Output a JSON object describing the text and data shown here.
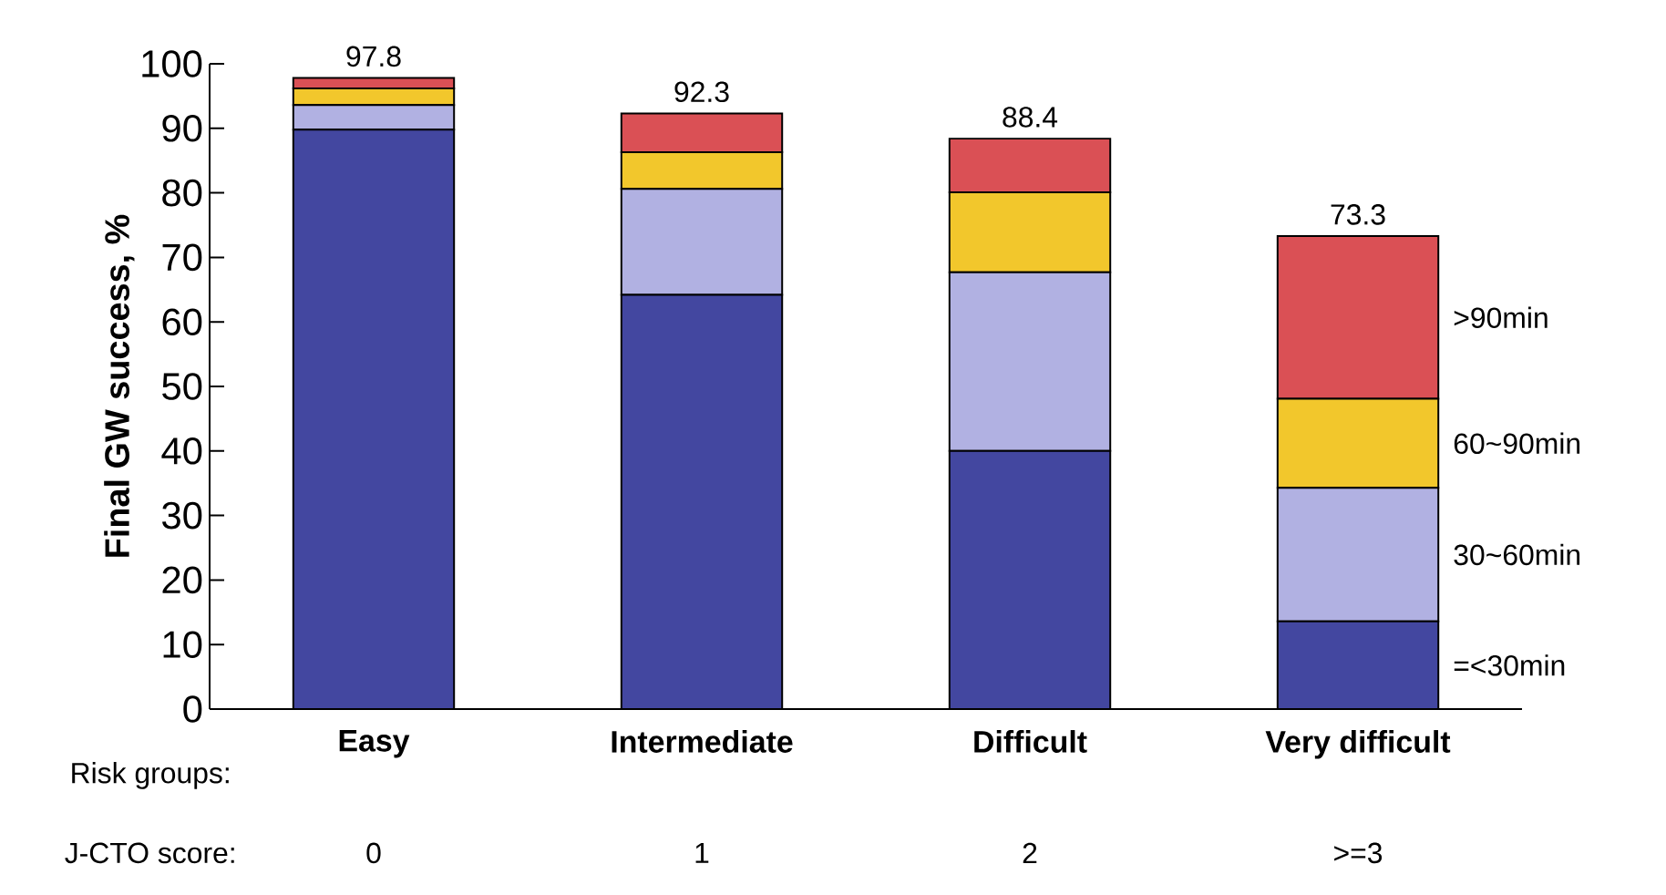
{
  "chart_data": {
    "type": "bar",
    "stacked": true,
    "ylabel": "Final GW success, %",
    "categories": [
      "Easy",
      "Intermediate",
      "Difficult",
      "Very difficult"
    ],
    "series": [
      {
        "name": "=<30min",
        "color": "#4347a0",
        "values": [
          89.8,
          64.2,
          40.0,
          13.6
        ]
      },
      {
        "name": "30~60min",
        "color": "#b1b1e2",
        "values": [
          3.8,
          16.4,
          27.7,
          20.7
        ]
      },
      {
        "name": "60~90min",
        "color": "#f2c72c",
        "values": [
          2.6,
          5.7,
          12.4,
          13.8
        ]
      },
      {
        "name": ">90min",
        "color": "#da5055",
        "values": [
          1.6,
          6.0,
          8.3,
          25.2
        ]
      }
    ],
    "totals": [
      "97.8",
      "92.3",
      "88.4",
      "73.3"
    ],
    "ylim": [
      0,
      100
    ],
    "yticks": [
      0,
      10,
      20,
      30,
      40,
      50,
      60,
      70,
      80,
      90,
      100
    ],
    "annotations": [
      "Risk groups:",
      "J-CTO score:",
      "0",
      "1",
      "2",
      ">=3"
    ]
  }
}
